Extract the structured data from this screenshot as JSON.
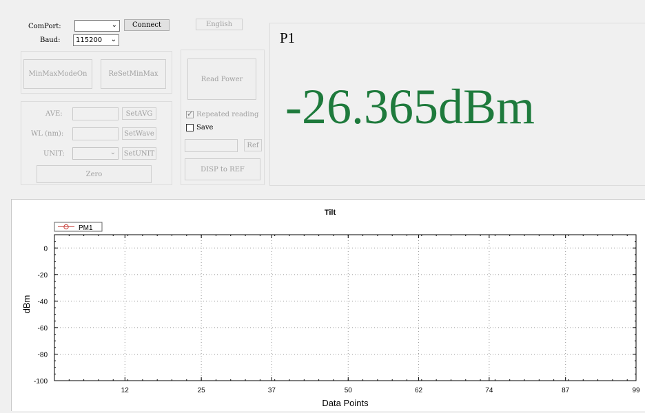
{
  "controls": {
    "comport_label": "ComPort:",
    "comport_value": "",
    "connect_label": "Connect",
    "baud_label": "Baud:",
    "baud_value": "115200",
    "english_label": "English",
    "minmax_on_label": "MinMaxModeOn",
    "reset_minmax_label": "ReSetMinMax",
    "read_power_label": "Read Power",
    "ave_label": "AVE:",
    "set_avg_label": "SetAVG",
    "wl_label": "WL (nm):",
    "set_wave_label": "SetWave",
    "unit_label": "UNIT:",
    "set_unit_label": "SetUNIT",
    "zero_label": "Zero",
    "repeated_reading_label": "Repeated reading",
    "repeated_reading_checked": true,
    "save_label": "Save",
    "save_checked": false,
    "ref_label": "Ref",
    "disp_to_ref_label": "DISP to REF"
  },
  "display": {
    "channel": "P1",
    "reading": "-26.365dBm",
    "reading_color": "#1e7a3c"
  },
  "chart_data": {
    "type": "line",
    "title": "Tilt",
    "xlabel": "Data Points",
    "ylabel": "dBm",
    "xlim": [
      0,
      99
    ],
    "ylim": [
      -100,
      10
    ],
    "x_ticks": [
      12,
      25,
      37,
      50,
      62,
      74,
      87,
      99
    ],
    "y_ticks": [
      0,
      -20,
      -40,
      -60,
      -80,
      -100
    ],
    "grid": true,
    "legend_position": "top-left",
    "series": [
      {
        "name": "PM1",
        "color": "#c8413c",
        "x": [],
        "y": []
      }
    ]
  }
}
